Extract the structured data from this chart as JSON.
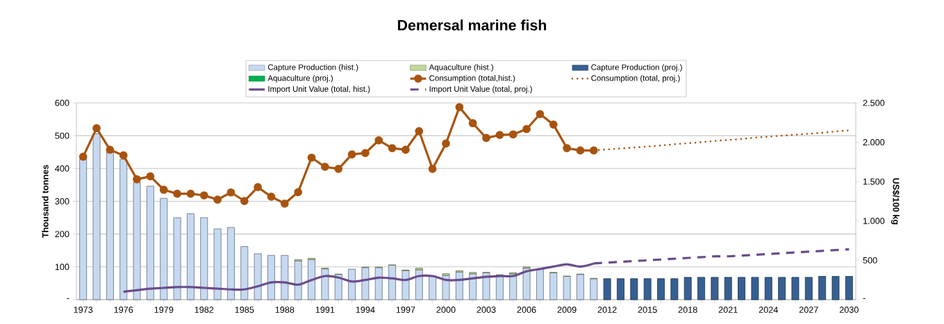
{
  "chart_data": {
    "type": "bar",
    "title": "Demersal marine fish",
    "ylabel": "Thousand tonnes",
    "y2label": "US$/100 kg",
    "categories": [
      "1973",
      null,
      null,
      "1976",
      null,
      null,
      "1979",
      null,
      null,
      "1982",
      null,
      null,
      "1985",
      null,
      null,
      "1988",
      null,
      null,
      "1991",
      null,
      null,
      "1994",
      null,
      null,
      "1997",
      null,
      null,
      "2000",
      null,
      null,
      "2003",
      null,
      null,
      "2006",
      null,
      null,
      "2009",
      null,
      null,
      "2012",
      null,
      null,
      "2015",
      null,
      null,
      "2018",
      null,
      null,
      "2021",
      null,
      null,
      "2024",
      null,
      null,
      "2027",
      null,
      null,
      "2030"
    ],
    "stacked": true,
    "grid": "y",
    "legend": "top",
    "ylim": [
      0,
      600
    ],
    "yticks": [
      {
        "value": 0,
        "label": "-"
      },
      100,
      200,
      300,
      400,
      500,
      600
    ],
    "y2lim": [
      0,
      2500
    ],
    "y2ticks": [
      {
        "value": 0,
        "label": "-"
      },
      500,
      {
        "value": 1000,
        "label": "1.000"
      },
      {
        "value": 1500,
        "label": "1.500"
      },
      {
        "value": 2000,
        "label": "2.000"
      },
      {
        "value": 2500,
        "label": "2.500"
      }
    ],
    "series": [
      {
        "name": "Capture Production (hist.)",
        "color": "#c6d9f1",
        "values": [
          428,
          506,
          449,
          428,
          357,
          346,
          309,
          250,
          262,
          250,
          216,
          220,
          162,
          140,
          135,
          135,
          118,
          122,
          94,
          77,
          93,
          98,
          98,
          105,
          89,
          91,
          73,
          74,
          84,
          79,
          82,
          75,
          79,
          96,
          93,
          82,
          71,
          77,
          64,
          null,
          null,
          null,
          null,
          null,
          null,
          null,
          null,
          null,
          null,
          null,
          null,
          null,
          null,
          null,
          null,
          null,
          null,
          null
        ]
      },
      {
        "name": "Aquaculture (hist.)",
        "color": "#c3d69b",
        "values": [
          null,
          null,
          null,
          null,
          null,
          null,
          null,
          null,
          null,
          null,
          null,
          null,
          null,
          null,
          null,
          null,
          4,
          4,
          2,
          1,
          null,
          1,
          1,
          1,
          1,
          5,
          null,
          5,
          4,
          4,
          1,
          1,
          3,
          4,
          null,
          1,
          1,
          1,
          1,
          null,
          null,
          null,
          null,
          null,
          null,
          null,
          null,
          null,
          null,
          null,
          null,
          null,
          null,
          null,
          null,
          null,
          null,
          null
        ]
      },
      {
        "name": "Capture Production (proj.)",
        "color": "#376092",
        "values": [
          null,
          null,
          null,
          null,
          null,
          null,
          null,
          null,
          null,
          null,
          null,
          null,
          null,
          null,
          null,
          null,
          null,
          null,
          null,
          null,
          null,
          null,
          null,
          null,
          null,
          null,
          null,
          null,
          null,
          null,
          null,
          null,
          null,
          null,
          null,
          null,
          null,
          null,
          null,
          64,
          64,
          64,
          64,
          64,
          64,
          68,
          68,
          68,
          68,
          68,
          68,
          68,
          68,
          68,
          68,
          71,
          71,
          71
        ]
      },
      {
        "name": "Aquaculture (proj.)",
        "color": "#00b050",
        "values": [
          null,
          null,
          null,
          null,
          null,
          null,
          null,
          null,
          null,
          null,
          null,
          null,
          null,
          null,
          null,
          null,
          null,
          null,
          null,
          null,
          null,
          null,
          null,
          null,
          null,
          null,
          null,
          null,
          null,
          null,
          null,
          null,
          null,
          null,
          null,
          null,
          null,
          null,
          null,
          null,
          null,
          null,
          null,
          null,
          null,
          null,
          null,
          null,
          null,
          null,
          null,
          null,
          null,
          null,
          null,
          null,
          null,
          null
        ]
      },
      {
        "name": "Consumption (total,hist.)",
        "type": "line",
        "color": "#a8540f",
        "marker": "circle",
        "line_style": "solid",
        "values": [
          436,
          523,
          457,
          440,
          367,
          376,
          335,
          323,
          323,
          318,
          305,
          327,
          301,
          343,
          314,
          293,
          328,
          433,
          405,
          399,
          443,
          447,
          486,
          462,
          457,
          514,
          399,
          476,
          587,
          538,
          493,
          502,
          504,
          520,
          566,
          534,
          462,
          455,
          455,
          null,
          null,
          null,
          null,
          null,
          null,
          null,
          null,
          null,
          null,
          null,
          null,
          null,
          null,
          null,
          null,
          null,
          null,
          null
        ]
      },
      {
        "name": "Consumption (total, proj.)",
        "type": "line",
        "color": "#a8540f",
        "marker": "none",
        "line_style": "dotted",
        "values": [
          null,
          null,
          null,
          null,
          null,
          null,
          null,
          null,
          null,
          null,
          null,
          null,
          null,
          null,
          null,
          null,
          null,
          null,
          null,
          null,
          null,
          null,
          null,
          null,
          null,
          null,
          null,
          null,
          null,
          null,
          null,
          null,
          null,
          null,
          null,
          null,
          null,
          null,
          455,
          458,
          461,
          464,
          467,
          470,
          474,
          477,
          480,
          484,
          487,
          490,
          494,
          497,
          500,
          503,
          506,
          509,
          513,
          516
        ]
      },
      {
        "name": "Import Unit Value (total, hist.)",
        "type": "line",
        "axis": "y2",
        "color": "#6a4c8c",
        "marker": "none",
        "line_style": "solid",
        "values": [
          null,
          null,
          null,
          100,
          120,
          140,
          150,
          160,
          160,
          150,
          140,
          130,
          130,
          170,
          220,
          220,
          190,
          250,
          300,
          280,
          230,
          250,
          280,
          270,
          250,
          300,
          300,
          250,
          250,
          270,
          290,
          300,
          300,
          360,
          390,
          420,
          450,
          420,
          460,
          null,
          null,
          null,
          null,
          null,
          null,
          null,
          null,
          null,
          null,
          null,
          null,
          null,
          null,
          null,
          null,
          null,
          null,
          null
        ]
      },
      {
        "name": "Import Unit Value (total, proj.)",
        "type": "line",
        "axis": "y2",
        "color": "#6a4c8c",
        "marker": "none",
        "line_style": "dashed",
        "values": [
          null,
          null,
          null,
          null,
          null,
          null,
          null,
          null,
          null,
          null,
          null,
          null,
          null,
          null,
          null,
          null,
          null,
          null,
          null,
          null,
          null,
          null,
          null,
          null,
          null,
          null,
          null,
          null,
          null,
          null,
          null,
          null,
          null,
          null,
          null,
          null,
          null,
          null,
          460,
          470,
          480,
          490,
          500,
          510,
          520,
          530,
          540,
          550,
          550,
          560,
          570,
          580,
          590,
          600,
          610,
          620,
          630,
          640
        ]
      }
    ]
  }
}
